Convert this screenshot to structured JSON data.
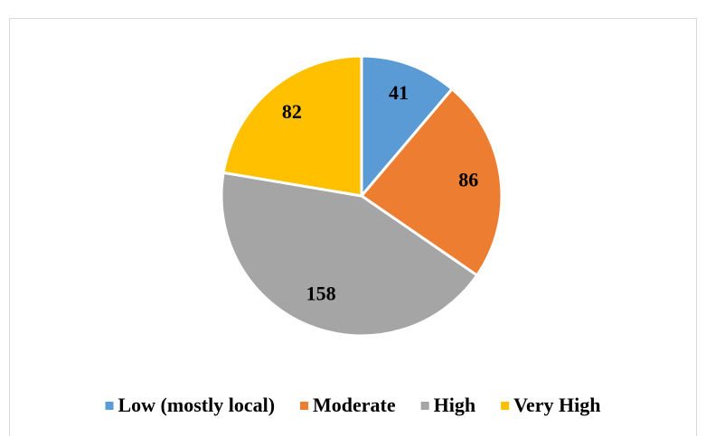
{
  "chart_data": {
    "type": "pie",
    "categories": [
      "Low (mostly local)",
      "Moderate",
      "High",
      "Very High"
    ],
    "values": [
      41,
      86,
      158,
      82
    ],
    "colors": [
      "#5b9bd5",
      "#ed7d31",
      "#a5a5a5",
      "#ffc000"
    ],
    "legend": "bottom"
  }
}
